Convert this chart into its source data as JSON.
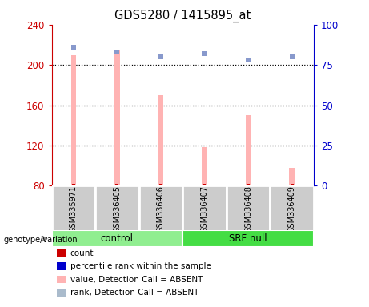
{
  "title": "GDS5280 / 1415895_at",
  "samples": [
    "GSM335971",
    "GSM336405",
    "GSM336406",
    "GSM336407",
    "GSM336408",
    "GSM336409"
  ],
  "bar_values": [
    210,
    215,
    170,
    118,
    150,
    98
  ],
  "blue_dot_values": [
    86,
    83,
    80,
    82,
    78,
    80
  ],
  "bar_bottom": 80,
  "ylim_left": [
    80,
    240
  ],
  "ylim_right": [
    0,
    100
  ],
  "yticks_left": [
    80,
    120,
    160,
    200,
    240
  ],
  "yticks_right": [
    0,
    25,
    50,
    75,
    100
  ],
  "bar_color": "#FFB3B3",
  "dot_red_color": "#CC0000",
  "dot_blue_color": "#8899CC",
  "left_axis_color": "#CC0000",
  "right_axis_color": "#0000CC",
  "sample_box_color": "#CCCCCC",
  "control_color": "#90EE90",
  "srfnull_color": "#44DD44",
  "legend_labels": [
    "count",
    "percentile rank within the sample",
    "value, Detection Call = ABSENT",
    "rank, Detection Call = ABSENT"
  ],
  "legend_colors": [
    "#CC0000",
    "#0000CC",
    "#FFB3B3",
    "#AABBCC"
  ]
}
